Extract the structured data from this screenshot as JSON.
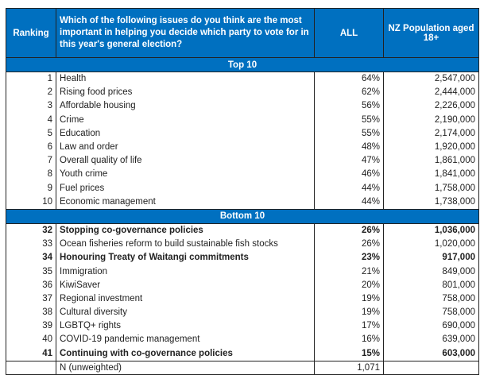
{
  "header": {
    "ranking": "Ranking",
    "question": "Which of the following issues do you think are the most important in helping you decide which party to vote for in this year's general election?",
    "all": "ALL",
    "population": "NZ Population aged 18+"
  },
  "sections": [
    {
      "title": "Top 10",
      "rows": [
        {
          "rank": "1",
          "issue": "Health",
          "all": "64%",
          "population": "2,547,000",
          "bold": false
        },
        {
          "rank": "2",
          "issue": "Rising food prices",
          "all": "62%",
          "population": "2,444,000",
          "bold": false
        },
        {
          "rank": "3",
          "issue": "Affordable housing",
          "all": "56%",
          "population": "2,226,000",
          "bold": false
        },
        {
          "rank": "4",
          "issue": "Crime",
          "all": "55%",
          "population": "2,190,000",
          "bold": false
        },
        {
          "rank": "5",
          "issue": "Education",
          "all": "55%",
          "population": "2,174,000",
          "bold": false
        },
        {
          "rank": "6",
          "issue": "Law and order",
          "all": "48%",
          "population": "1,920,000",
          "bold": false
        },
        {
          "rank": "7",
          "issue": "Overall quality of life",
          "all": "47%",
          "population": "1,861,000",
          "bold": false
        },
        {
          "rank": "8",
          "issue": "Youth crime",
          "all": "46%",
          "population": "1,841,000",
          "bold": false
        },
        {
          "rank": "9",
          "issue": "Fuel prices",
          "all": "44%",
          "population": "1,758,000",
          "bold": false
        },
        {
          "rank": "10",
          "issue": "Economic management",
          "all": "44%",
          "population": "1,738,000",
          "bold": false
        }
      ]
    },
    {
      "title": "Bottom 10",
      "rows": [
        {
          "rank": "32",
          "issue": "Stopping co-governance policies",
          "all": "26%",
          "population": "1,036,000",
          "bold": true
        },
        {
          "rank": "33",
          "issue": "Ocean fisheries reform to build sustainable fish stocks",
          "all": "26%",
          "population": "1,020,000",
          "bold": false
        },
        {
          "rank": "34",
          "issue": "Honouring Treaty of Waitangi commitments",
          "all": "23%",
          "population": "917,000",
          "bold": true
        },
        {
          "rank": "35",
          "issue": "Immigration",
          "all": "21%",
          "population": "849,000",
          "bold": false
        },
        {
          "rank": "36",
          "issue": "KiwiSaver",
          "all": "20%",
          "population": "801,000",
          "bold": false
        },
        {
          "rank": "37",
          "issue": "Regional investment",
          "all": "19%",
          "population": "758,000",
          "bold": false
        },
        {
          "rank": "38",
          "issue": "Cultural diversity",
          "all": "19%",
          "population": "758,000",
          "bold": false
        },
        {
          "rank": "39",
          "issue": "LGBTQ+ rights",
          "all": "17%",
          "population": "690,000",
          "bold": false
        },
        {
          "rank": "40",
          "issue": "COVID-19 pandemic management",
          "all": "16%",
          "population": "639,000",
          "bold": false
        },
        {
          "rank": "41",
          "issue": "Continuing with co-governance policies",
          "all": "15%",
          "population": "603,000",
          "bold": true
        }
      ]
    }
  ],
  "footer": {
    "label": "N (unweighted)",
    "all": "1,071"
  }
}
